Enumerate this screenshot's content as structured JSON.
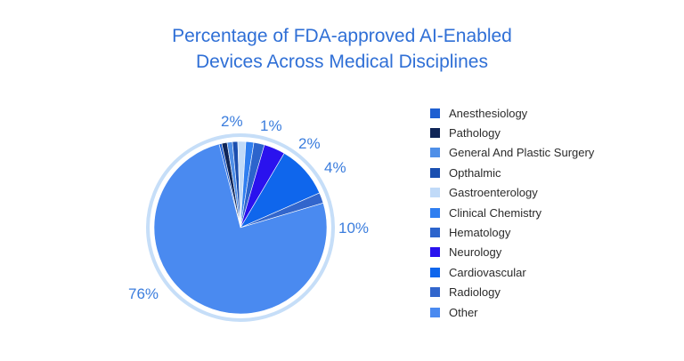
{
  "chart_data": {
    "type": "pie",
    "title_lines": [
      "Percentage of FDA-approved AI-Enabled",
      "Devices Across Medical Disciplines"
    ],
    "slices": [
      {
        "label": "Anesthesiology",
        "value": 0.5,
        "color": "#1f5fd1"
      },
      {
        "label": "Pathology",
        "value": 1,
        "color": "#0f2557"
      },
      {
        "label": "General And Plastic Surgery",
        "value": 1,
        "color": "#4f8fe8"
      },
      {
        "label": "Opthalmic",
        "value": 1,
        "color": "#1a4fb0"
      },
      {
        "label": "Gastroenterology",
        "value": 1.5,
        "color": "#c0daf8"
      },
      {
        "label": "Clinical Chemistry",
        "value": 1.5,
        "color": "#2f7ef0"
      },
      {
        "label": "Hematology",
        "value": 2,
        "color": "#2c64cc"
      },
      {
        "label": "Neurology",
        "value": 4,
        "color": "#2a12ee"
      },
      {
        "label": "Cardiovascular",
        "value": 10,
        "color": "#0f66ec"
      },
      {
        "label": "Radiology",
        "value": 2,
        "color": "#3266cc"
      },
      {
        "label": "Other",
        "value": 76,
        "color": "#4a8af0"
      }
    ],
    "data_labels": [
      "2%",
      "1%",
      "2%",
      "4%",
      "10%",
      "76%"
    ],
    "legend_position": "right"
  },
  "colors": {
    "title": "#2f6fd6",
    "ring": "#c6def8",
    "percent_labels": "#3b7ddd"
  }
}
